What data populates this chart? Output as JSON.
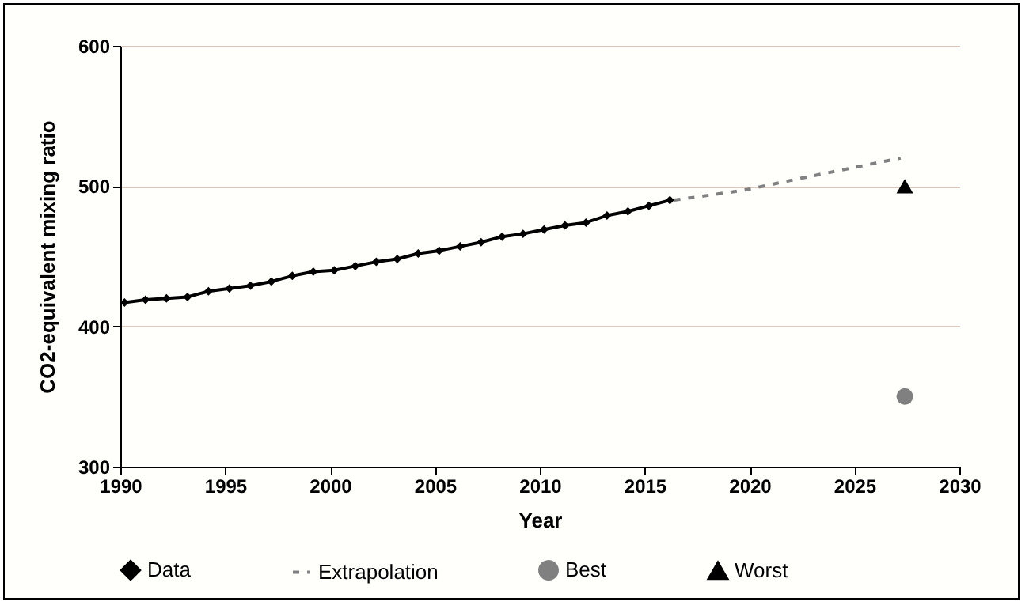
{
  "chart_data": {
    "type": "line",
    "xlabel": "Year",
    "ylabel": "CO2-equivalent mixing ratio",
    "xlim": [
      1990,
      2030
    ],
    "xticks": [
      1990,
      1995,
      2000,
      2005,
      2010,
      2015,
      2020,
      2025,
      2030
    ],
    "ylim": [
      300,
      600
    ],
    "yticks": [
      300,
      400,
      500,
      600
    ],
    "grid": "y",
    "legend": "bottom",
    "series": [
      {
        "name": "Data",
        "type": "line",
        "color": "#000000",
        "marker": "diamond",
        "line_style": "solid",
        "x": [
          1990.2,
          1991.2,
          1992.2,
          1993.2,
          1994.2,
          1995.2,
          1996.2,
          1997.2,
          1998.2,
          1999.2,
          2000.2,
          2001.2,
          2002.2,
          2003.2,
          2004.2,
          2005.2,
          2006.2,
          2007.2,
          2008.2,
          2009.2,
          2010.2,
          2011.2,
          2012.2,
          2013.2,
          2014.2,
          2015.2,
          2016.2
        ],
        "values": [
          417,
          419,
          420,
          421,
          425,
          427,
          429,
          432,
          436,
          439,
          440,
          443,
          446,
          448,
          452,
          454,
          457,
          460,
          464,
          466,
          469,
          472,
          474,
          479,
          482,
          486,
          490
        ]
      },
      {
        "name": "Extrapolation",
        "type": "line",
        "color": "#808080",
        "marker": "none",
        "line_style": "dashed",
        "x": [
          2016.4,
          2019.7,
          2022.9,
          2027.2
        ],
        "values": [
          490,
          497,
          507,
          520
        ]
      },
      {
        "name": "Best",
        "type": "scatter",
        "color": "#808080",
        "marker": "circle",
        "x": [
          2027.4
        ],
        "values": [
          350
        ]
      },
      {
        "name": "Worst",
        "type": "scatter",
        "color": "#000000",
        "marker": "triangle",
        "x": [
          2027.4
        ],
        "values": [
          500
        ]
      }
    ]
  }
}
